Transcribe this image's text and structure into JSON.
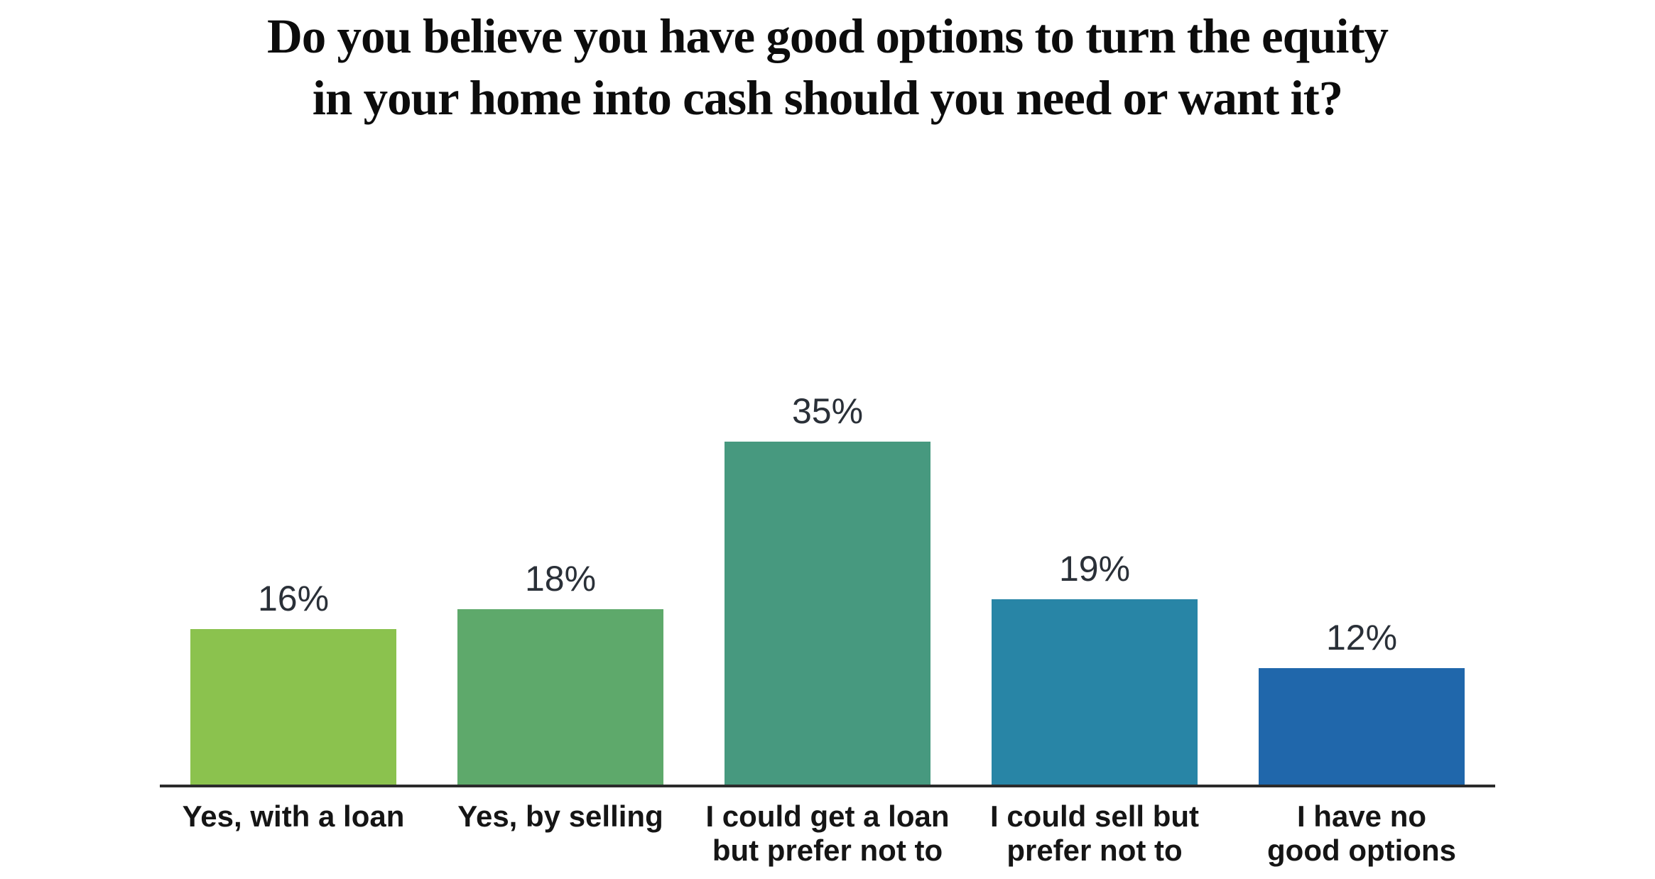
{
  "title": {
    "line1": "Do you believe you have good options to turn the equity",
    "line2": "in your home into cash should you need or want it?"
  },
  "chart_data": {
    "type": "bar",
    "title": "Do you believe you have good options to turn the equity in your home into cash should you need or want it?",
    "categories": [
      "Yes, with a loan",
      "Yes, by selling",
      "I could get a loan but prefer not to",
      "I could sell but prefer not to",
      "I have no good options"
    ],
    "category_labels_wrapped": [
      "Yes, with a loan",
      "Yes, by selling",
      "I could get a loan\nbut prefer not to",
      "I could sell but\nprefer not to",
      "I have no\ngood options"
    ],
    "values": [
      16,
      18,
      35,
      19,
      12
    ],
    "value_labels": [
      "16%",
      "18%",
      "35%",
      "19%",
      "12%"
    ],
    "bar_colors": [
      "#8BC24E",
      "#5EA96B",
      "#47997F",
      "#2885A6",
      "#2067AB"
    ],
    "xlabel": "",
    "ylabel": "",
    "ylim": [
      0,
      35
    ],
    "grid": false,
    "legend": false,
    "unit": "percent",
    "axis_line_color": "#2b2b2b",
    "value_label_color": "#2a3038",
    "category_label_color": "#151515"
  }
}
